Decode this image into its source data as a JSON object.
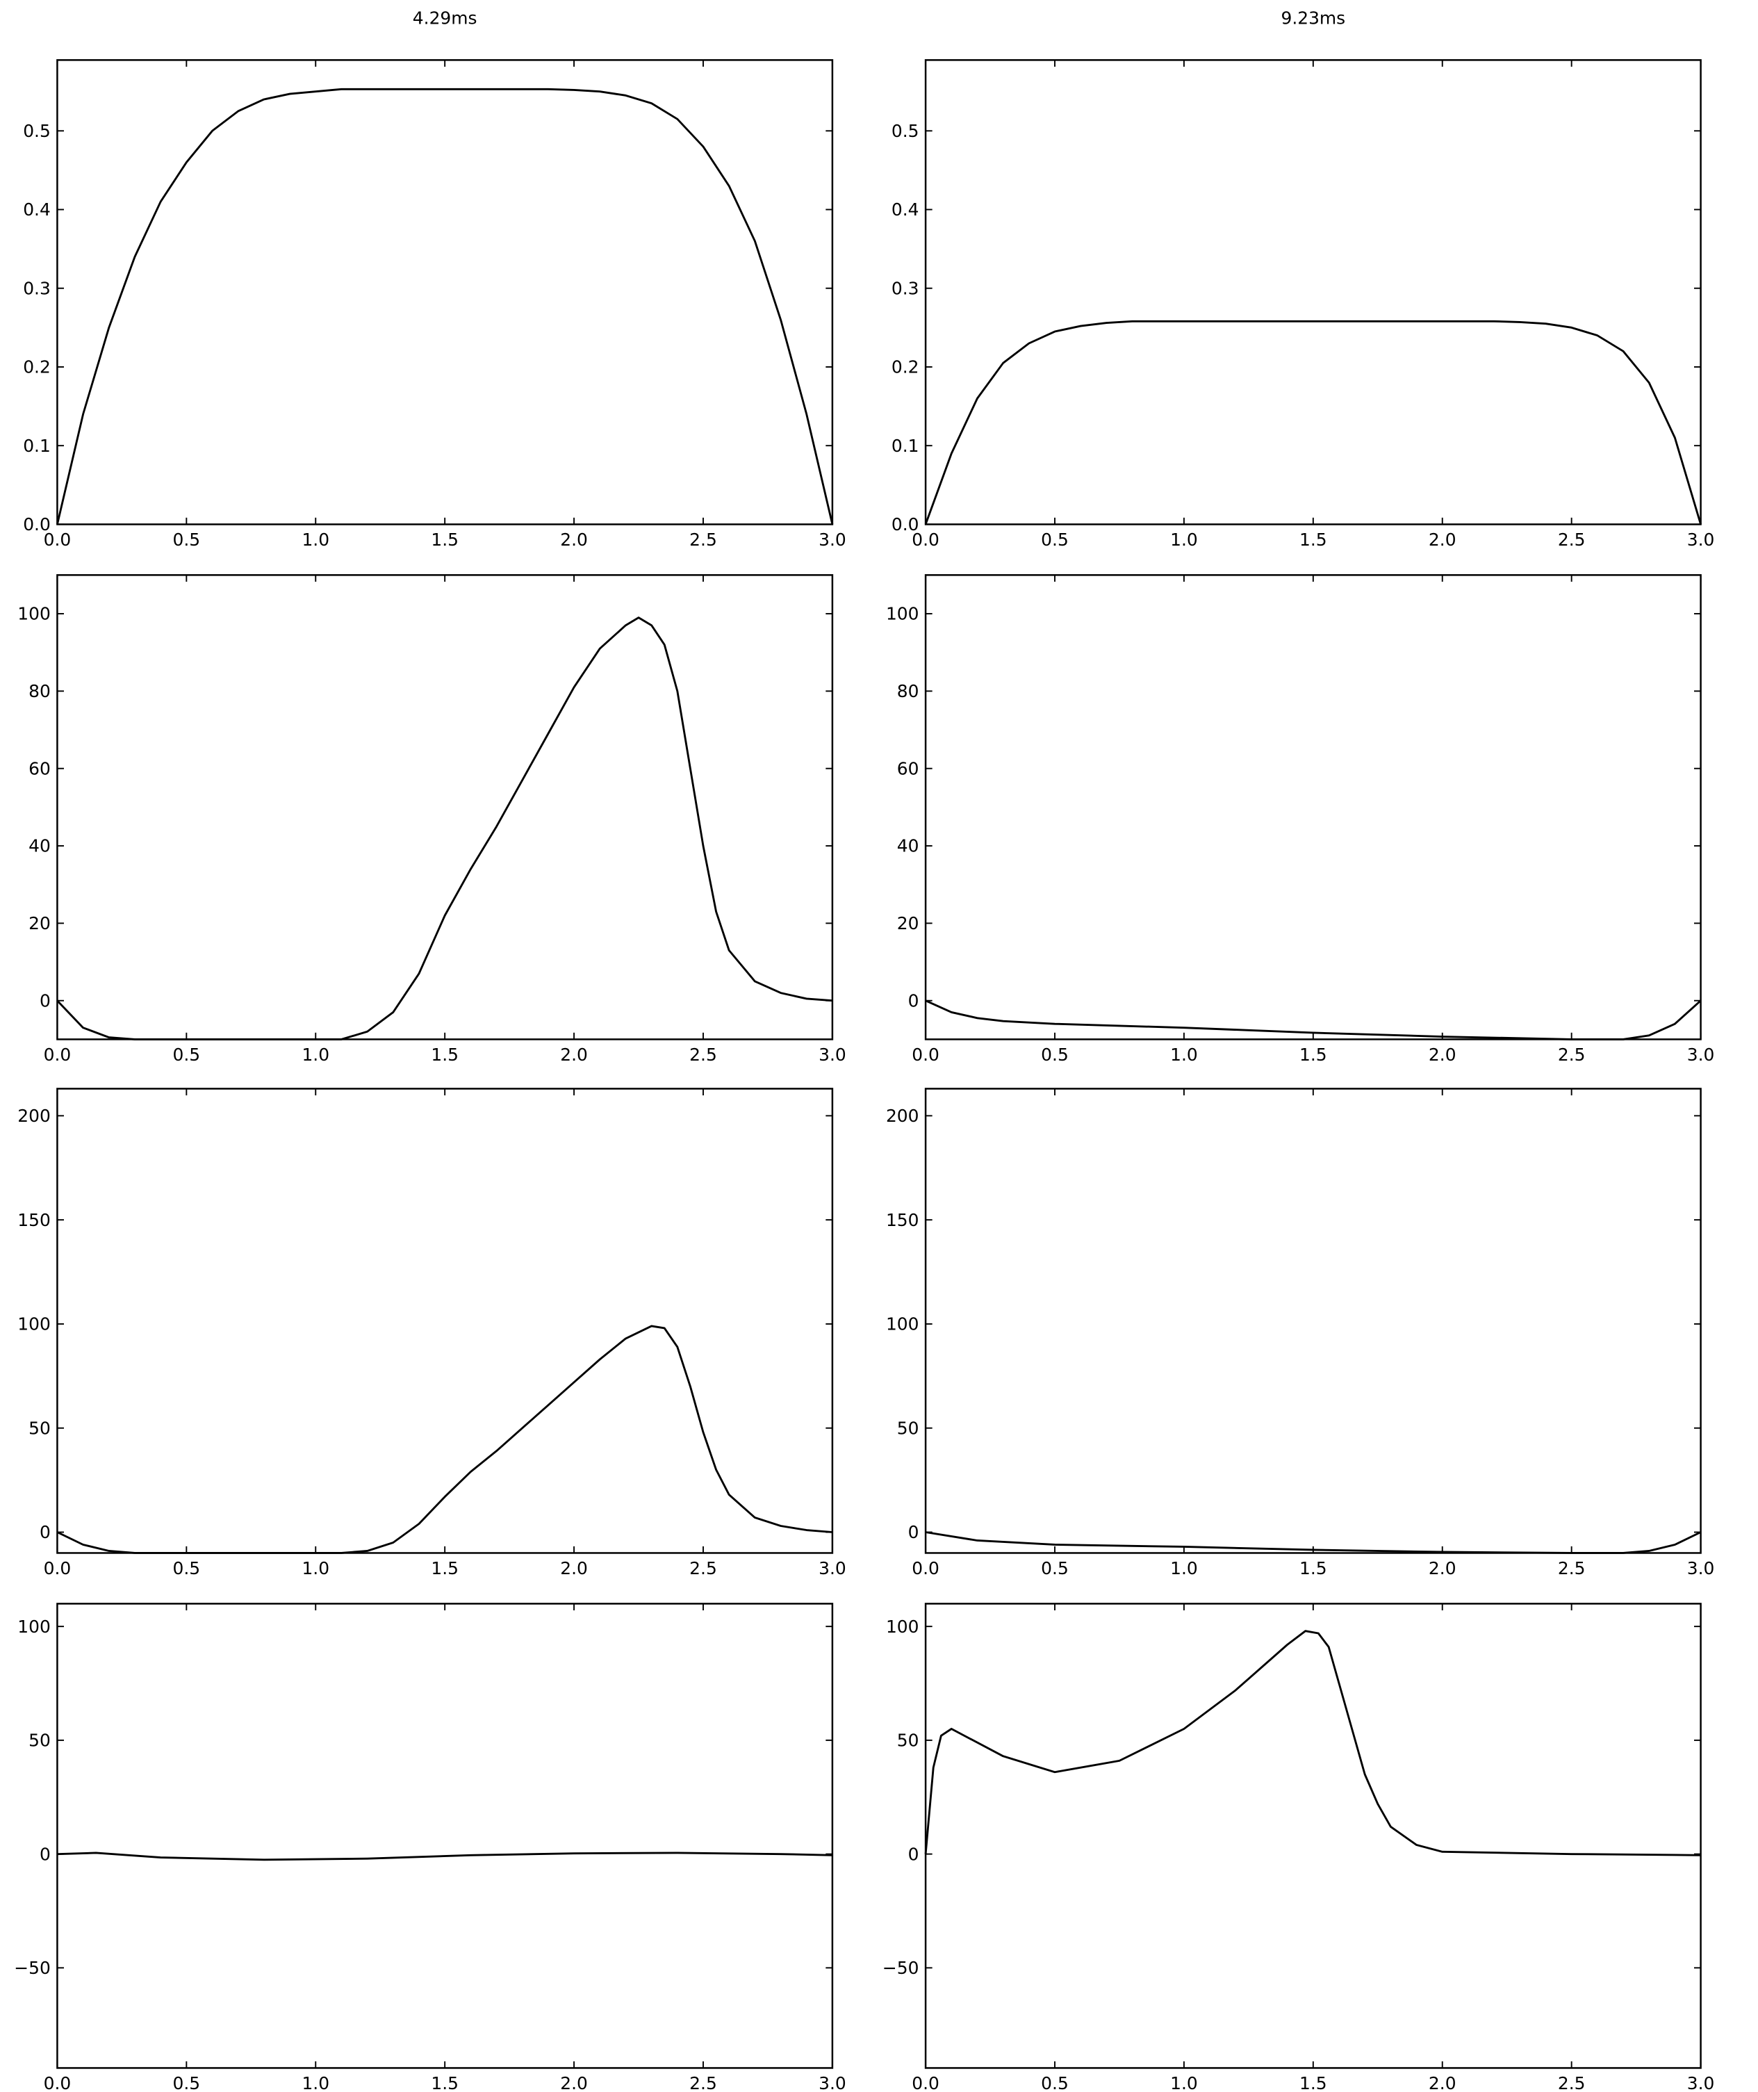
{
  "chart_data": [
    {
      "type": "line",
      "title": "4.29ms",
      "color": "#000000",
      "x": [
        0,
        0.1,
        0.2,
        0.3,
        0.4,
        0.5,
        0.6,
        0.7,
        0.8,
        0.9,
        1.0,
        1.1,
        1.2,
        1.3,
        1.4,
        1.5,
        1.6,
        1.7,
        1.8,
        1.9,
        2.0,
        2.1,
        2.2,
        2.3,
        2.4,
        2.5,
        2.6,
        2.7,
        2.8,
        2.9,
        3.0
      ],
      "values": [
        0,
        0.14,
        0.25,
        0.34,
        0.41,
        0.46,
        0.5,
        0.525,
        0.54,
        0.547,
        0.55,
        0.553,
        0.553,
        0.553,
        0.553,
        0.553,
        0.553,
        0.553,
        0.553,
        0.553,
        0.552,
        0.55,
        0.545,
        0.535,
        0.515,
        0.48,
        0.43,
        0.36,
        0.26,
        0.14,
        0
      ],
      "xlim": [
        0,
        3
      ],
      "ylim": [
        0,
        0.59
      ],
      "xticks": [
        {
          "value": 0,
          "label": "0.0"
        },
        0.5,
        {
          "value": 1,
          "label": "1.0"
        },
        1.5,
        {
          "value": 2,
          "label": "2.0"
        },
        2.5,
        {
          "value": 3,
          "label": "3.0"
        }
      ],
      "yticks": [
        {
          "value": 0,
          "label": "0.0"
        },
        0.1,
        0.2,
        0.3,
        0.4,
        0.5
      ]
    },
    {
      "type": "line",
      "title": "9.23ms",
      "color": "#000000",
      "x": [
        0,
        0.1,
        0.2,
        0.3,
        0.4,
        0.5,
        0.6,
        0.7,
        0.8,
        1.5,
        2.2,
        2.3,
        2.4,
        2.5,
        2.6,
        2.7,
        2.8,
        2.9,
        3.0
      ],
      "values": [
        0,
        0.09,
        0.16,
        0.205,
        0.23,
        0.245,
        0.252,
        0.256,
        0.258,
        0.258,
        0.258,
        0.257,
        0.255,
        0.25,
        0.24,
        0.22,
        0.18,
        0.11,
        0
      ],
      "xlim": [
        0,
        3
      ],
      "ylim": [
        0,
        0.59
      ],
      "xticks": [
        {
          "value": 0,
          "label": "0.0"
        },
        0.5,
        {
          "value": 1,
          "label": "1.0"
        },
        1.5,
        {
          "value": 2,
          "label": "2.0"
        },
        2.5,
        {
          "value": 3,
          "label": "3.0"
        }
      ],
      "yticks": [
        {
          "value": 0,
          "label": "0.0"
        },
        0.1,
        0.2,
        0.3,
        0.4,
        0.5
      ]
    },
    {
      "type": "line",
      "color": "#000000",
      "x": [
        0,
        0.1,
        0.2,
        0.3,
        1.1,
        1.2,
        1.3,
        1.4,
        1.5,
        1.6,
        1.7,
        1.8,
        1.9,
        2.0,
        2.1,
        2.2,
        2.25,
        2.3,
        2.35,
        2.4,
        2.45,
        2.5,
        2.55,
        2.6,
        2.7,
        2.8,
        2.9,
        3.0
      ],
      "values": [
        0,
        -7,
        -9.5,
        -10,
        -10,
        -8,
        -3,
        7,
        22,
        34,
        45,
        57,
        69,
        81,
        91,
        97,
        99,
        97,
        92,
        80,
        60,
        40,
        23,
        13,
        5,
        2,
        0.5,
        0
      ],
      "xlim": [
        0,
        3
      ],
      "ylim": [
        -10,
        110
      ],
      "xticks": [
        {
          "value": 0,
          "label": "0.0"
        },
        0.5,
        {
          "value": 1,
          "label": "1.0"
        },
        1.5,
        {
          "value": 2,
          "label": "2.0"
        },
        2.5,
        {
          "value": 3,
          "label": "3.0"
        }
      ],
      "yticks": [
        0,
        20,
        40,
        60,
        80,
        100
      ]
    },
    {
      "type": "line",
      "color": "#000000",
      "x": [
        0,
        0.1,
        0.2,
        0.3,
        0.5,
        1.0,
        1.5,
        2.0,
        2.5,
        2.7,
        2.8,
        2.9,
        3.0
      ],
      "values": [
        0,
        -3,
        -4.5,
        -5.3,
        -6,
        -7,
        -8.3,
        -9.3,
        -10,
        -10,
        -9,
        -6,
        0
      ],
      "xlim": [
        0,
        3
      ],
      "ylim": [
        -10,
        110
      ],
      "xticks": [
        {
          "value": 0,
          "label": "0.0"
        },
        0.5,
        {
          "value": 1,
          "label": "1.0"
        },
        1.5,
        {
          "value": 2,
          "label": "2.0"
        },
        2.5,
        {
          "value": 3,
          "label": "3.0"
        }
      ],
      "yticks": [
        0,
        20,
        40,
        60,
        80,
        100
      ]
    },
    {
      "type": "line",
      "color": "#000000",
      "x": [
        0,
        0.1,
        0.2,
        0.3,
        1.1,
        1.2,
        1.3,
        1.4,
        1.5,
        1.6,
        1.7,
        1.8,
        1.9,
        2.0,
        2.1,
        2.2,
        2.3,
        2.35,
        2.4,
        2.45,
        2.5,
        2.55,
        2.6,
        2.7,
        2.8,
        2.9,
        3.0
      ],
      "values": [
        0,
        -6,
        -9,
        -10,
        -10,
        -9,
        -5,
        4,
        17,
        29,
        39,
        50,
        61,
        72,
        83,
        93,
        99,
        98,
        89,
        70,
        48,
        30,
        18,
        7,
        3,
        1,
        0
      ],
      "xlim": [
        0,
        3
      ],
      "ylim": [
        -10,
        213
      ],
      "xticks": [
        {
          "value": 0,
          "label": "0.0"
        },
        0.5,
        {
          "value": 1,
          "label": "1.0"
        },
        1.5,
        {
          "value": 2,
          "label": "2.0"
        },
        2.5,
        {
          "value": 3,
          "label": "3.0"
        }
      ],
      "yticks": [
        0,
        50,
        100,
        150,
        200
      ]
    },
    {
      "type": "line",
      "color": "#000000",
      "x": [
        0,
        0.2,
        0.5,
        1.0,
        1.5,
        2.0,
        2.5,
        2.7,
        2.8,
        2.9,
        3.0
      ],
      "values": [
        0,
        -4,
        -6,
        -7,
        -8.5,
        -9.5,
        -10,
        -10,
        -9,
        -6,
        0
      ],
      "xlim": [
        0,
        3
      ],
      "ylim": [
        -10,
        213
      ],
      "xticks": [
        {
          "value": 0,
          "label": "0.0"
        },
        0.5,
        {
          "value": 1,
          "label": "1.0"
        },
        1.5,
        {
          "value": 2,
          "label": "2.0"
        },
        2.5,
        {
          "value": 3,
          "label": "3.0"
        }
      ],
      "yticks": [
        0,
        50,
        100,
        150,
        200
      ]
    },
    {
      "type": "line",
      "color": "#000000",
      "x": [
        0,
        0.15,
        0.4,
        0.8,
        1.2,
        1.6,
        2.0,
        2.4,
        2.8,
        3.0
      ],
      "values": [
        0,
        0.5,
        -1.5,
        -2.5,
        -2,
        -0.5,
        0.3,
        0.5,
        0,
        -0.5
      ],
      "xlim": [
        0,
        3
      ],
      "ylim": [
        -94,
        110
      ],
      "xticks": [
        {
          "value": 0,
          "label": "0.0"
        },
        0.5,
        {
          "value": 1,
          "label": "1.0"
        },
        1.5,
        {
          "value": 2,
          "label": "2.0"
        },
        2.5,
        {
          "value": 3,
          "label": "3.0"
        }
      ],
      "yticks": [
        {
          "value": -50,
          "label": "−50"
        },
        0,
        50,
        100
      ]
    },
    {
      "type": "line",
      "color": "#000000",
      "x": [
        0,
        0.03,
        0.06,
        0.1,
        0.15,
        0.3,
        0.5,
        0.75,
        1.0,
        1.2,
        1.4,
        1.47,
        1.52,
        1.56,
        1.6,
        1.65,
        1.7,
        1.75,
        1.8,
        1.9,
        2.0,
        2.5,
        3.0
      ],
      "values": [
        0,
        38,
        52,
        55,
        52,
        43,
        36,
        41,
        55,
        72,
        92,
        98,
        97,
        91,
        75,
        55,
        35,
        22,
        12,
        4,
        1,
        0,
        -0.5
      ],
      "xlim": [
        0,
        3
      ],
      "ylim": [
        -94,
        110
      ],
      "xticks": [
        {
          "value": 0,
          "label": "0.0"
        },
        0.5,
        {
          "value": 1,
          "label": "1.0"
        },
        1.5,
        {
          "value": 2,
          "label": "2.0"
        },
        2.5,
        {
          "value": 3,
          "label": "3.0"
        }
      ],
      "yticks": [
        {
          "value": -50,
          "label": "−50"
        },
        0,
        50,
        100
      ]
    }
  ]
}
